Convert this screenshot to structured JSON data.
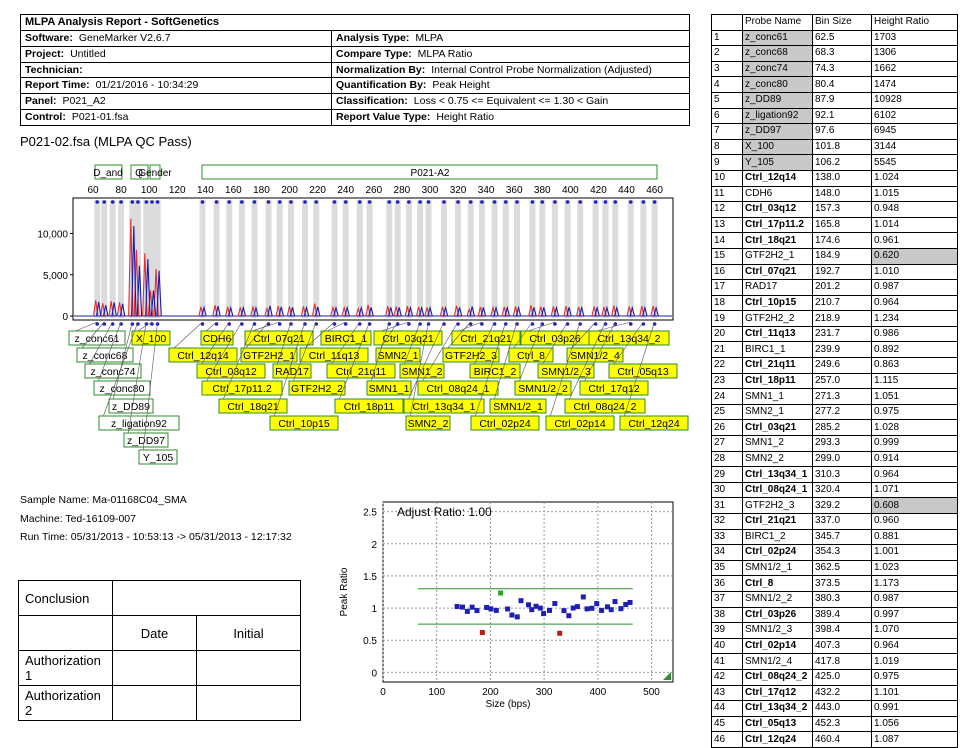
{
  "report": {
    "title": "MLPA Analysis Report   - SoftGenetics",
    "left": [
      {
        "label": "Software:",
        "value": "GeneMarker V2.6.7"
      },
      {
        "label": "Project:",
        "value": "Untitled"
      },
      {
        "label": "Technician:",
        "value": ""
      },
      {
        "label": "Report Time:",
        "value": "01/21/2016 - 10:34:29"
      },
      {
        "label": "Panel:",
        "value": "P021_A2"
      },
      {
        "label": "Control:",
        "value": "P021-01.fsa"
      }
    ],
    "right": [
      {
        "label": "Analysis Type:",
        "value": "MLPA"
      },
      {
        "label": "Compare Type:",
        "value": "MLPA Ratio"
      },
      {
        "label": "Normalization By:",
        "value": "Internal Control Probe Normalization (Adjusted)"
      },
      {
        "label": "Quantification By:",
        "value": "Peak Height"
      },
      {
        "label": "Classification:",
        "value": "Loss < 0.75 <= Equivalent <= 1.30 < Gain"
      },
      {
        "label": "Report Value Type:",
        "value": "Height Ratio"
      }
    ]
  },
  "sample_title": "P021-02.fsa (MLPA QC Pass)",
  "sample_info": {
    "name": "Sample Name: Ma-01168C04_SMA",
    "machine": "Machine: Ted-16109-007",
    "run_time": "Run Time: 05/31/2013 - 10:53:13 -> 05/31/2013 - 12:17:32"
  },
  "electropherogram": {
    "panel_label": "P021-A2",
    "small_bins": [
      "D_and",
      "Q",
      "Gender"
    ],
    "x_ticks": [
      60,
      80,
      100,
      120,
      140,
      160,
      180,
      200,
      220,
      240,
      260,
      280,
      300,
      320,
      340,
      360,
      380,
      400,
      420,
      440,
      460
    ],
    "y_ticks": [
      {
        "v": 0,
        "l": "0"
      },
      {
        "v": 5000,
        "l": "5,000"
      },
      {
        "v": 10000,
        "l": "10,000"
      }
    ],
    "peaks_red": [
      [
        63,
        1900
      ],
      [
        68,
        1550
      ],
      [
        74,
        1800
      ],
      [
        80,
        1650
      ],
      [
        88,
        11800
      ],
      [
        92,
        8000
      ],
      [
        98,
        7600
      ],
      [
        102,
        3100
      ],
      [
        106,
        5700
      ],
      [
        138,
        1100
      ],
      [
        148,
        1300
      ],
      [
        157,
        1100
      ],
      [
        166,
        1050
      ],
      [
        175,
        1150
      ],
      [
        185,
        900
      ],
      [
        193,
        1200
      ],
      [
        201,
        1150
      ],
      [
        211,
        1150
      ],
      [
        219,
        1500
      ],
      [
        232,
        1100
      ],
      [
        240,
        1000
      ],
      [
        250,
        900
      ],
      [
        257,
        1350
      ],
      [
        271,
        1200
      ],
      [
        277,
        1150
      ],
      [
        285,
        1200
      ],
      [
        293,
        1100
      ],
      [
        299,
        1050
      ],
      [
        310,
        1100
      ],
      [
        320,
        1250
      ],
      [
        329,
        800
      ],
      [
        337,
        1100
      ],
      [
        346,
        1000
      ],
      [
        354,
        1100
      ],
      [
        362,
        1150
      ],
      [
        373,
        1300
      ],
      [
        380,
        1150
      ],
      [
        389,
        1150
      ],
      [
        398,
        1200
      ],
      [
        407,
        1100
      ],
      [
        418,
        1150
      ],
      [
        425,
        1100
      ],
      [
        432,
        1250
      ],
      [
        443,
        1150
      ],
      [
        452,
        1200
      ],
      [
        460,
        1200
      ]
    ],
    "peaks_blue": [
      [
        63,
        1700
      ],
      [
        68,
        1300
      ],
      [
        74,
        1650
      ],
      [
        80,
        1470
      ],
      [
        88,
        10900
      ],
      [
        92,
        6100
      ],
      [
        98,
        6900
      ],
      [
        102,
        3100
      ],
      [
        106,
        5500
      ],
      [
        138,
        1020
      ],
      [
        148,
        1200
      ],
      [
        157,
        1000
      ],
      [
        166,
        1000
      ],
      [
        175,
        1000
      ],
      [
        185,
        1250
      ],
      [
        193,
        1100
      ],
      [
        201,
        1050
      ],
      [
        211,
        1000
      ],
      [
        219,
        1100
      ],
      [
        232,
        1000
      ],
      [
        240,
        1000
      ],
      [
        250,
        1000
      ],
      [
        257,
        1050
      ],
      [
        271,
        1050
      ],
      [
        277,
        1050
      ],
      [
        285,
        1000
      ],
      [
        293,
        1000
      ],
      [
        299,
        1000
      ],
      [
        310,
        1000
      ],
      [
        320,
        1050
      ],
      [
        329,
        1150
      ],
      [
        337,
        1050
      ],
      [
        346,
        1000
      ],
      [
        354,
        1000
      ],
      [
        362,
        1000
      ],
      [
        373,
        1050
      ],
      [
        380,
        1050
      ],
      [
        389,
        1000
      ],
      [
        398,
        1050
      ],
      [
        407,
        1000
      ],
      [
        418,
        1000
      ],
      [
        425,
        1000
      ],
      [
        432,
        1000
      ],
      [
        443,
        1000
      ],
      [
        452,
        1000
      ],
      [
        460,
        1000
      ]
    ]
  },
  "probe_labels": [
    {
      "t": "z_conc61",
      "x": 97,
      "y": 338,
      "ax": 63,
      "y2": false
    },
    {
      "t": "X_100",
      "x": 151,
      "y": 338,
      "ax": 102,
      "y2": true
    },
    {
      "t": "CDH6",
      "x": 217,
      "y": 338,
      "ax": 148,
      "y2": true
    },
    {
      "t": "Ctrl_07q21",
      "x": 279,
      "y": 338,
      "ax": 193,
      "y2": true
    },
    {
      "t": "BIRC1_1",
      "x": 346,
      "y": 338,
      "ax": 240,
      "y2": true
    },
    {
      "t": "Ctrl_03q21",
      "x": 408,
      "y": 338,
      "ax": 285,
      "y2": true
    },
    {
      "t": "Ctrl_21q21",
      "x": 486,
      "y": 338,
      "ax": 337,
      "y2": true
    },
    {
      "t": "Ctrl_03p26",
      "x": 555,
      "y": 338,
      "ax": 389,
      "y2": true
    },
    {
      "t": "Ctrl_13q34_2",
      "x": 629,
      "y": 338,
      "ax": 443,
      "y2": true
    },
    {
      "t": "z_conc68",
      "x": 105,
      "y": 355,
      "ax": 68,
      "y2": false
    },
    {
      "t": "Ctrl_12q14",
      "x": 203,
      "y": 355,
      "ax": 138,
      "y2": true
    },
    {
      "t": "GTF2H2_1",
      "x": 269,
      "y": 355,
      "ax": 185,
      "y2": true
    },
    {
      "t": "Ctrl_11q13",
      "x": 334,
      "y": 355,
      "ax": 232,
      "y2": true
    },
    {
      "t": "SMN2_1",
      "x": 398,
      "y": 355,
      "ax": 277,
      "y2": true
    },
    {
      "t": "GTF2H2_3",
      "x": 471,
      "y": 355,
      "ax": 329,
      "y2": true
    },
    {
      "t": "Ctrl_8",
      "x": 531,
      "y": 355,
      "ax": 373,
      "y2": true
    },
    {
      "t": "SMN1/2_4",
      "x": 595,
      "y": 355,
      "ax": 418,
      "y2": true
    },
    {
      "t": "z_conc74",
      "x": 113,
      "y": 371,
      "ax": 74,
      "y2": false
    },
    {
      "t": "Ctrl_03q12",
      "x": 231,
      "y": 371,
      "ax": 157,
      "y2": true
    },
    {
      "t": "RAD17",
      "x": 292,
      "y": 371,
      "ax": 201,
      "y2": true
    },
    {
      "t": "Ctrl_21q11",
      "x": 361,
      "y": 371,
      "ax": 250,
      "y2": true
    },
    {
      "t": "SMN1_2",
      "x": 422,
      "y": 371,
      "ax": 293,
      "y2": true
    },
    {
      "t": "BIRC1_2",
      "x": 495,
      "y": 371,
      "ax": 346,
      "y2": true
    },
    {
      "t": "SMN1/2_3",
      "x": 566,
      "y": 371,
      "ax": 398,
      "y2": true
    },
    {
      "t": "Ctrl_05q13",
      "x": 643,
      "y": 371,
      "ax": 452,
      "y2": true
    },
    {
      "t": "z_conc80",
      "x": 122,
      "y": 388,
      "ax": 80,
      "y2": false
    },
    {
      "t": "Ctrl_17p11.2",
      "x": 242,
      "y": 388,
      "ax": 166,
      "y2": true
    },
    {
      "t": "GTF2H2_2",
      "x": 317,
      "y": 388,
      "ax": 219,
      "y2": true
    },
    {
      "t": "SMN1_1",
      "x": 389,
      "y": 388,
      "ax": 271,
      "y2": true
    },
    {
      "t": "Ctrl_08q24_1",
      "x": 458,
      "y": 388,
      "ax": 320,
      "y2": true
    },
    {
      "t": "SMN1/2_2",
      "x": 543,
      "y": 388,
      "ax": 380,
      "y2": true
    },
    {
      "t": "Ctrl_17q12",
      "x": 614,
      "y": 388,
      "ax": 432,
      "y2": true
    },
    {
      "t": "z_DD89",
      "x": 131,
      "y": 406,
      "ax": 88,
      "y2": false
    },
    {
      "t": "Ctrl_18q21",
      "x": 253,
      "y": 406,
      "ax": 175,
      "y2": true
    },
    {
      "t": "Ctrl_18p11",
      "x": 369,
      "y": 406,
      "ax": 257,
      "y2": true
    },
    {
      "t": "Ctrl_13q34_1",
      "x": 444,
      "y": 406,
      "ax": 310,
      "y2": true
    },
    {
      "t": "SMN1/2_1",
      "x": 518,
      "y": 406,
      "ax": 362,
      "y2": true
    },
    {
      "t": "Ctrl_08q24_2",
      "x": 605,
      "y": 406,
      "ax": 425,
      "y2": true
    },
    {
      "t": "z_ligation92",
      "x": 139,
      "y": 423,
      "ax": 92,
      "y2": false
    },
    {
      "t": "Ctrl_10p15",
      "x": 304,
      "y": 423,
      "ax": 211,
      "y2": true
    },
    {
      "t": "SMN2_2",
      "x": 428,
      "y": 423,
      "ax": 299,
      "y2": true
    },
    {
      "t": "Ctrl_02p24",
      "x": 505,
      "y": 423,
      "ax": 354,
      "y2": true
    },
    {
      "t": "Ctrl_02p14",
      "x": 580,
      "y": 423,
      "ax": 407,
      "y2": true
    },
    {
      "t": "Ctrl_12q24",
      "x": 654,
      "y": 423,
      "ax": 460,
      "y2": true
    },
    {
      "t": "z_DD97",
      "x": 146,
      "y": 440,
      "ax": 98,
      "y2": false
    },
    {
      "t": "Y_105",
      "x": 158,
      "y": 457,
      "ax": 106,
      "y2": false
    }
  ],
  "ratio_plot": {
    "title": "Adjust Ratio: 1.00",
    "xlabel": "Size (bps)",
    "ylabel": "Peak Ratio",
    "x_ticks": [
      0,
      100,
      200,
      300,
      400,
      500
    ],
    "y_ticks": [
      0,
      0.5,
      1,
      1.5,
      2,
      2.5
    ],
    "upper_threshold": 1.3,
    "lower_threshold": 0.75
  },
  "chart_data": {
    "type": "scatter",
    "title": "Adjust Ratio: 1.00",
    "xlabel": "Size (bps)",
    "ylabel": "Peak Ratio",
    "xlim": [
      0,
      540
    ],
    "ylim": [
      -0.15,
      2.65
    ],
    "grid": true,
    "series": [
      {
        "color": "#1f1fb4",
        "points": [
          [
            138,
            1.024
          ],
          [
            148,
            1.015
          ],
          [
            157,
            0.948
          ],
          [
            166,
            1.014
          ],
          [
            175,
            0.961
          ],
          [
            193,
            1.01
          ],
          [
            201,
            0.987
          ],
          [
            211,
            0.964
          ],
          [
            232,
            0.986
          ],
          [
            240,
            0.892
          ],
          [
            250,
            0.863
          ],
          [
            257,
            1.115
          ],
          [
            271,
            1.051
          ],
          [
            277,
            0.975
          ],
          [
            285,
            1.028
          ],
          [
            293,
            0.999
          ],
          [
            299,
            0.914
          ],
          [
            310,
            0.964
          ],
          [
            320,
            1.071
          ],
          [
            337,
            0.96
          ],
          [
            346,
            0.881
          ],
          [
            354,
            1.001
          ],
          [
            362,
            1.023
          ],
          [
            373,
            1.173
          ],
          [
            380,
            0.987
          ],
          [
            389,
            0.997
          ],
          [
            398,
            1.07
          ],
          [
            407,
            0.964
          ],
          [
            418,
            1.019
          ],
          [
            425,
            0.975
          ],
          [
            432,
            1.101
          ],
          [
            443,
            0.991
          ],
          [
            452,
            1.056
          ],
          [
            460,
            1.087
          ]
        ]
      },
      {
        "color": "#2ea02e",
        "points": [
          [
            219,
            1.234
          ]
        ]
      },
      {
        "color": "#b42020",
        "points": [
          [
            185,
            0.62
          ],
          [
            329,
            0.608
          ]
        ]
      }
    ]
  },
  "signoff": {
    "conclusion": "Conclusion",
    "date": "Date",
    "initial": "Initial",
    "auth1": "Authorization 1",
    "auth2": "Authorization 2"
  },
  "probe_table": {
    "headers": [
      "",
      "Probe Name",
      "Bin Size",
      "Height Ratio"
    ],
    "rows": [
      [
        "1",
        "z_conc61",
        "62.5",
        "1703",
        "g",
        0
      ],
      [
        "2",
        "z_conc68",
        "68.3",
        "1306",
        "g",
        0
      ],
      [
        "3",
        "z_conc74",
        "74.3",
        "1662",
        "g",
        0
      ],
      [
        "4",
        "z_conc80",
        "80.4",
        "1474",
        "g",
        0
      ],
      [
        "5",
        "z_DD89",
        "87.9",
        "10928",
        "g",
        0
      ],
      [
        "6",
        "z_ligation92",
        "92.1",
        "6102",
        "g",
        0
      ],
      [
        "7",
        "z_DD97",
        "97.6",
        "6945",
        "g",
        0
      ],
      [
        "8",
        "X_100",
        "101.8",
        "3144",
        "g",
        0
      ],
      [
        "9",
        "Y_105",
        "106.2",
        "5545",
        "g",
        0
      ],
      [
        "10",
        "Ctrl_12q14",
        "138.0",
        "1.024",
        "",
        1
      ],
      [
        "11",
        "CDH6",
        "148.0",
        "1.015",
        "",
        0
      ],
      [
        "12",
        "Ctrl_03q12",
        "157.3",
        "0.948",
        "",
        1
      ],
      [
        "13",
        "Ctrl_17p11.2",
        "165.8",
        "1.014",
        "",
        1
      ],
      [
        "14",
        "Ctrl_18q21",
        "174.6",
        "0.961",
        "",
        1
      ],
      [
        "15",
        "GTF2H2_1",
        "184.9",
        "0.620",
        "r",
        0
      ],
      [
        "16",
        "Ctrl_07q21",
        "192.7",
        "1.010",
        "",
        1
      ],
      [
        "17",
        "RAD17",
        "201.2",
        "0.987",
        "",
        0
      ],
      [
        "18",
        "Ctrl_10p15",
        "210.7",
        "0.964",
        "",
        1
      ],
      [
        "19",
        "GTF2H2_2",
        "218.9",
        "1.234",
        "",
        0
      ],
      [
        "20",
        "Ctrl_11q13",
        "231.7",
        "0.986",
        "",
        1
      ],
      [
        "21",
        "BIRC1_1",
        "239.9",
        "0.892",
        "",
        0
      ],
      [
        "22",
        "Ctrl_21q11",
        "249.6",
        "0.863",
        "",
        1
      ],
      [
        "23",
        "Ctrl_18p11",
        "257.0",
        "1.115",
        "",
        1
      ],
      [
        "24",
        "SMN1_1",
        "271.3",
        "1.051",
        "",
        0
      ],
      [
        "25",
        "SMN2_1",
        "277.2",
        "0.975",
        "",
        0
      ],
      [
        "26",
        "Ctrl_03q21",
        "285.2",
        "1.028",
        "",
        1
      ],
      [
        "27",
        "SMN1_2",
        "293.3",
        "0.999",
        "",
        0
      ],
      [
        "28",
        "SMN2_2",
        "299.0",
        "0.914",
        "",
        0
      ],
      [
        "29",
        "Ctrl_13q34_1",
        "310.3",
        "0.964",
        "",
        1
      ],
      [
        "30",
        "Ctrl_08q24_1",
        "320.4",
        "1.071",
        "",
        1
      ],
      [
        "31",
        "GTF2H2_3",
        "329.2",
        "0.608",
        "r",
        0
      ],
      [
        "32",
        "Ctrl_21q21",
        "337.0",
        "0.960",
        "",
        1
      ],
      [
        "33",
        "BIRC1_2",
        "345.7",
        "0.881",
        "",
        0
      ],
      [
        "34",
        "Ctrl_02p24",
        "354.3",
        "1.001",
        "",
        1
      ],
      [
        "35",
        "SMN1/2_1",
        "362.5",
        "1.023",
        "",
        0
      ],
      [
        "36",
        "Ctrl_8",
        "373.5",
        "1.173",
        "",
        1
      ],
      [
        "37",
        "SMN1/2_2",
        "380.3",
        "0.987",
        "",
        0
      ],
      [
        "38",
        "Ctrl_03p26",
        "389.4",
        "0.997",
        "",
        1
      ],
      [
        "39",
        "SMN1/2_3",
        "398.4",
        "1.070",
        "",
        0
      ],
      [
        "40",
        "Ctrl_02p14",
        "407.3",
        "0.964",
        "",
        1
      ],
      [
        "41",
        "SMN1/2_4",
        "417.8",
        "1.019",
        "",
        0
      ],
      [
        "42",
        "Ctrl_08q24_2",
        "425.0",
        "0.975",
        "",
        1
      ],
      [
        "43",
        "Ctrl_17q12",
        "432.2",
        "1.101",
        "",
        1
      ],
      [
        "44",
        "Ctrl_13q34_2",
        "443.0",
        "0.991",
        "",
        1
      ],
      [
        "45",
        "Ctrl_05q13",
        "452.3",
        "1.056",
        "",
        1
      ],
      [
        "46",
        "Ctrl_12q24",
        "460.4",
        "1.087",
        "",
        1
      ]
    ]
  }
}
